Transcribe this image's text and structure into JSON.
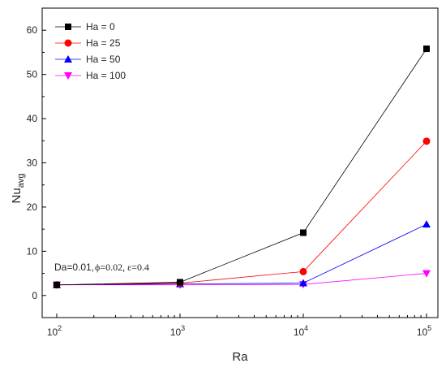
{
  "chart_data": {
    "type": "line",
    "xlabel": "Ra",
    "ylabel": "Nu",
    "ylabel_sub": "avg",
    "x_scale": "log",
    "x": [
      100,
      1000,
      10000,
      100000
    ],
    "x_ticks": [
      {
        "base": "10",
        "exp": "2"
      },
      {
        "base": "10",
        "exp": "3"
      },
      {
        "base": "10",
        "exp": "4"
      },
      {
        "base": "10",
        "exp": "5"
      }
    ],
    "ylim": [
      -5,
      65
    ],
    "yticks": [
      "0",
      "10",
      "20",
      "30",
      "40",
      "50",
      "60"
    ],
    "grid": false,
    "legend_position": "top-left",
    "series": [
      {
        "name": "Ha = 0",
        "color": "#000000",
        "marker": "square",
        "values": [
          2.4,
          3.0,
          14.2,
          55.8
        ]
      },
      {
        "name": "Ha = 25",
        "color": "#ff0000",
        "marker": "circle",
        "values": [
          2.4,
          2.8,
          5.4,
          34.9
        ]
      },
      {
        "name": "Ha = 50",
        "color": "#0000ff",
        "marker": "triangle-up",
        "values": [
          2.4,
          2.6,
          2.8,
          16.1
        ]
      },
      {
        "name": "Ha = 100",
        "color": "#ff00ff",
        "marker": "triangle-down",
        "values": [
          2.4,
          2.4,
          2.5,
          5.0
        ]
      }
    ],
    "annotation": {
      "part1": "Da=0.01,",
      "part2": "ϕ=0.02, ε=0.4"
    }
  }
}
